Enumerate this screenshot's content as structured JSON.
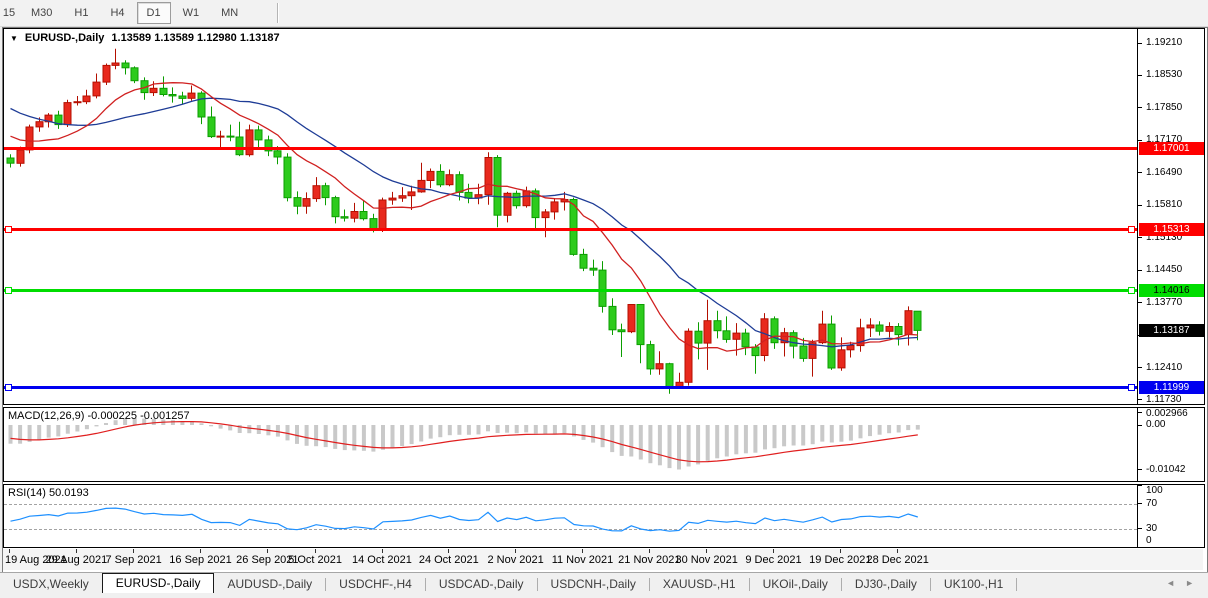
{
  "toolbar": {
    "timeframes": [
      {
        "label": "15",
        "active": false,
        "clipped": true
      },
      {
        "label": "M30",
        "active": false
      },
      {
        "label": "H1",
        "active": false
      },
      {
        "label": "H4",
        "active": false
      },
      {
        "label": "D1",
        "active": true
      },
      {
        "label": "W1",
        "active": false
      },
      {
        "label": "MN",
        "active": false
      }
    ]
  },
  "chart": {
    "dropdown_icon": "▼",
    "title_symbol": "EURUSD-,Daily",
    "title_ohlc": "1.13589 1.13589 1.12980 1.13187",
    "price_axis_ticks": [
      "1.19210",
      "1.18530",
      "1.17850",
      "1.17170",
      "1.16490",
      "1.15810",
      "1.15130",
      "1.14450",
      "1.13770",
      "1.13090",
      "1.12410",
      "1.11730"
    ],
    "current_price_tag": {
      "value": "1.13187",
      "bg": "#000000",
      "fg": "#ffffff"
    },
    "hlines": [
      {
        "value": 1.17001,
        "label": "1.17001",
        "color": "#ff0000",
        "text_color": "#ffffff",
        "handles": false
      },
      {
        "value": 1.15313,
        "label": "1.15313",
        "color": "#ff0000",
        "text_color": "#ffffff",
        "handles": true
      },
      {
        "value": 1.14016,
        "label": "1.14016",
        "color": "#00dd00",
        "text_color": "#000000",
        "handles": true
      },
      {
        "value": 1.11999,
        "label": "1.11999",
        "color": "#0000f0",
        "text_color": "#ffffff",
        "handles": true
      }
    ],
    "colors": {
      "candle_up_fill": "#e8291d",
      "candle_up_stroke": "#b40f00",
      "candle_down_fill": "#2dcb1c",
      "candle_down_stroke": "#0b9e00",
      "ma_fast": "#d02020",
      "ma_slow": "#1e3c96",
      "macd_bar": "#c9c9c9",
      "macd_signal": "#e01f1f",
      "rsi_line": "#1e90ff"
    }
  },
  "chart_data": {
    "type": "candlestick",
    "symbol": "EURUSD-",
    "timeframe": "Daily",
    "ohlc_display": {
      "open": "1.13589",
      "high": "1.13589",
      "low": "1.12980",
      "close": "1.13187"
    },
    "y_axis_range": [
      1.1173,
      1.1921
    ],
    "candles": [
      [
        1.168,
        1.1688,
        1.166,
        1.1669
      ],
      [
        1.1669,
        1.1704,
        1.1662,
        1.1697
      ],
      [
        1.1697,
        1.175,
        1.169,
        1.1745
      ],
      [
        1.1745,
        1.1765,
        1.1735,
        1.1756
      ],
      [
        1.1756,
        1.1774,
        1.1744,
        1.177
      ],
      [
        1.177,
        1.1779,
        1.1741,
        1.175
      ],
      [
        1.175,
        1.1802,
        1.1745,
        1.1796
      ],
      [
        1.1796,
        1.181,
        1.179,
        1.1798
      ],
      [
        1.1798,
        1.1823,
        1.1793,
        1.181
      ],
      [
        1.181,
        1.1857,
        1.1805,
        1.1839
      ],
      [
        1.1839,
        1.1878,
        1.1833,
        1.1874
      ],
      [
        1.1874,
        1.1909,
        1.1866,
        1.1879
      ],
      [
        1.1879,
        1.1885,
        1.1855,
        1.1869
      ],
      [
        1.1869,
        1.1872,
        1.1837,
        1.1842
      ],
      [
        1.1842,
        1.1849,
        1.1802,
        1.1817
      ],
      [
        1.1817,
        1.1841,
        1.181,
        1.1826
      ],
      [
        1.1826,
        1.1851,
        1.1809,
        1.1813
      ],
      [
        1.1813,
        1.1828,
        1.1796,
        1.181
      ],
      [
        1.181,
        1.1819,
        1.1793,
        1.1805
      ],
      [
        1.1805,
        1.1832,
        1.18,
        1.1816
      ],
      [
        1.1816,
        1.182,
        1.1751,
        1.1766
      ],
      [
        1.1766,
        1.1788,
        1.1722,
        1.1725
      ],
      [
        1.1725,
        1.1737,
        1.17,
        1.1726
      ],
      [
        1.1726,
        1.175,
        1.1715,
        1.1724
      ],
      [
        1.1724,
        1.1756,
        1.1684,
        1.1687
      ],
      [
        1.1687,
        1.175,
        1.1683,
        1.1739
      ],
      [
        1.1739,
        1.1748,
        1.1701,
        1.1718
      ],
      [
        1.1718,
        1.1727,
        1.1684,
        1.1695
      ],
      [
        1.1695,
        1.1705,
        1.1667,
        1.1682
      ],
      [
        1.1682,
        1.169,
        1.1589,
        1.1597
      ],
      [
        1.1597,
        1.161,
        1.1562,
        1.1579
      ],
      [
        1.1579,
        1.1608,
        1.1563,
        1.1595
      ],
      [
        1.1595,
        1.164,
        1.1588,
        1.1622
      ],
      [
        1.1622,
        1.1628,
        1.1581,
        1.1597
      ],
      [
        1.1597,
        1.1601,
        1.1543,
        1.1557
      ],
      [
        1.1557,
        1.1572,
        1.1547,
        1.1554
      ],
      [
        1.1554,
        1.1586,
        1.1545,
        1.1568
      ],
      [
        1.1568,
        1.1591,
        1.1549,
        1.1553
      ],
      [
        1.1553,
        1.1563,
        1.1524,
        1.153
      ],
      [
        1.153,
        1.1597,
        1.1525,
        1.1592
      ],
      [
        1.1592,
        1.1609,
        1.1582,
        1.1596
      ],
      [
        1.1596,
        1.1619,
        1.1588,
        1.1601
      ],
      [
        1.1601,
        1.1622,
        1.1571,
        1.1609
      ],
      [
        1.1609,
        1.167,
        1.1607,
        1.1633
      ],
      [
        1.1633,
        1.1658,
        1.1617,
        1.1652
      ],
      [
        1.1652,
        1.1667,
        1.1619,
        1.1624
      ],
      [
        1.1624,
        1.1656,
        1.1621,
        1.1645
      ],
      [
        1.1645,
        1.1652,
        1.1591,
        1.1608
      ],
      [
        1.1608,
        1.1626,
        1.1585,
        1.1596
      ],
      [
        1.1596,
        1.1626,
        1.1583,
        1.1603
      ],
      [
        1.1603,
        1.1692,
        1.1582,
        1.1681
      ],
      [
        1.1681,
        1.1686,
        1.1535,
        1.156
      ],
      [
        1.156,
        1.1609,
        1.1545,
        1.1606
      ],
      [
        1.1606,
        1.1612,
        1.1574,
        1.158
      ],
      [
        1.158,
        1.162,
        1.1576,
        1.1611
      ],
      [
        1.1611,
        1.1616,
        1.1527,
        1.1555
      ],
      [
        1.1555,
        1.1573,
        1.1514,
        1.1567
      ],
      [
        1.1567,
        1.1595,
        1.1551,
        1.1588
      ],
      [
        1.1588,
        1.1609,
        1.157,
        1.1593
      ],
      [
        1.1593,
        1.1597,
        1.1475,
        1.1478
      ],
      [
        1.1478,
        1.149,
        1.1443,
        1.1449
      ],
      [
        1.1449,
        1.1467,
        1.1433,
        1.1445
      ],
      [
        1.1445,
        1.1464,
        1.1356,
        1.1369
      ],
      [
        1.1369,
        1.1386,
        1.1309,
        1.132
      ],
      [
        1.132,
        1.1333,
        1.1263,
        1.1316
      ],
      [
        1.1316,
        1.1374,
        1.1313,
        1.1373
      ],
      [
        1.1373,
        1.1374,
        1.125,
        1.1289
      ],
      [
        1.1289,
        1.1297,
        1.1226,
        1.1238
      ],
      [
        1.1238,
        1.1275,
        1.1226,
        1.1249
      ],
      [
        1.1249,
        1.1251,
        1.1186,
        1.1201
      ],
      [
        1.1201,
        1.123,
        1.1196,
        1.121
      ],
      [
        1.121,
        1.1323,
        1.1203,
        1.1317
      ],
      [
        1.1317,
        1.1336,
        1.1258,
        1.1292
      ],
      [
        1.1292,
        1.1383,
        1.1236,
        1.1339
      ],
      [
        1.1339,
        1.136,
        1.1302,
        1.1318
      ],
      [
        1.1318,
        1.1348,
        1.1293,
        1.13
      ],
      [
        1.13,
        1.1334,
        1.1266,
        1.1313
      ],
      [
        1.1313,
        1.1322,
        1.1267,
        1.1284
      ],
      [
        1.1284,
        1.129,
        1.1228,
        1.1266
      ],
      [
        1.1266,
        1.1355,
        1.1254,
        1.1343
      ],
      [
        1.1343,
        1.1348,
        1.128,
        1.1293
      ],
      [
        1.1293,
        1.1324,
        1.1264,
        1.1314
      ],
      [
        1.1314,
        1.1319,
        1.126,
        1.1286
      ],
      [
        1.1286,
        1.1303,
        1.1253,
        1.126
      ],
      [
        1.126,
        1.1299,
        1.1222,
        1.1293
      ],
      [
        1.1293,
        1.136,
        1.129,
        1.1332
      ],
      [
        1.1332,
        1.135,
        1.1236,
        1.124
      ],
      [
        1.124,
        1.1304,
        1.1234,
        1.1278
      ],
      [
        1.1278,
        1.1295,
        1.1262,
        1.1287
      ],
      [
        1.1287,
        1.1343,
        1.1274,
        1.1324
      ],
      [
        1.1324,
        1.1344,
        1.1305,
        1.133
      ],
      [
        1.133,
        1.1338,
        1.1308,
        1.1317
      ],
      [
        1.1317,
        1.1336,
        1.1304,
        1.1327
      ],
      [
        1.1327,
        1.1334,
        1.1287,
        1.131
      ],
      [
        1.131,
        1.1369,
        1.1287,
        1.136
      ],
      [
        1.13589,
        1.13589,
        1.1298,
        1.13187
      ]
    ],
    "x_ticks": [
      {
        "index": 0,
        "label": "19 Aug 2021"
      },
      {
        "index": 7,
        "label": "29 Aug 2021"
      },
      {
        "index": 13,
        "label": "7 Sep 2021"
      },
      {
        "index": 20,
        "label": "16 Sep 2021"
      },
      {
        "index": 27,
        "label": "26 Sep 2021"
      },
      {
        "index": 32,
        "label": "5 Oct 2021"
      },
      {
        "index": 39,
        "label": "14 Oct 2021"
      },
      {
        "index": 46,
        "label": "24 Oct 2021"
      },
      {
        "index": 53,
        "label": "2 Nov 2021"
      },
      {
        "index": 60,
        "label": "11 Nov 2021"
      },
      {
        "index": 67,
        "label": "21 Nov 2021"
      },
      {
        "index": 73,
        "label": "30 Nov 2021"
      },
      {
        "index": 80,
        "label": "9 Dec 2021"
      },
      {
        "index": 87,
        "label": "19 Dec 2021"
      },
      {
        "index": 93,
        "label": "28 Dec 2021"
      }
    ],
    "moving_averages": [
      {
        "name": "fast-ma",
        "period": 10,
        "color": "#d02020"
      },
      {
        "name": "slow-ma",
        "period": 20,
        "color": "#1e3c96"
      }
    ],
    "macd": {
      "label": "MACD(12,26,9)",
      "values_text": "-0.000225 -0.001257",
      "axis_ticks": [
        {
          "value": 0.002966,
          "label": "0.002966"
        },
        {
          "value": 0.0,
          "label": "0.00"
        },
        {
          "value": -0.01042,
          "label": "-0.01042"
        }
      ]
    },
    "rsi": {
      "label": "RSI(14)",
      "value_text": "50.0193",
      "axis_ticks": [
        {
          "value": 100,
          "label": "100"
        },
        {
          "value": 70,
          "label": "70"
        },
        {
          "value": 30,
          "label": "30"
        },
        {
          "value": 0,
          "label": "0"
        }
      ],
      "levels": [
        70,
        30
      ]
    }
  },
  "tabs": {
    "items": [
      {
        "label": "USDX,Weekly",
        "active": false
      },
      {
        "label": "EURUSD-,Daily",
        "active": true
      },
      {
        "label": "AUDUSD-,Daily",
        "active": false
      },
      {
        "label": "USDCHF-,H4",
        "active": false
      },
      {
        "label": "USDCAD-,Daily",
        "active": false
      },
      {
        "label": "USDCNH-,Daily",
        "active": false
      },
      {
        "label": "XAUUSD-,H1",
        "active": false
      },
      {
        "label": "UKOil-,Daily",
        "active": false
      },
      {
        "label": "DJ30-,Daily",
        "active": false
      },
      {
        "label": "UK100-,H1",
        "active": false
      }
    ],
    "scroll_left_icon": "◄",
    "scroll_right_icon": "►"
  }
}
